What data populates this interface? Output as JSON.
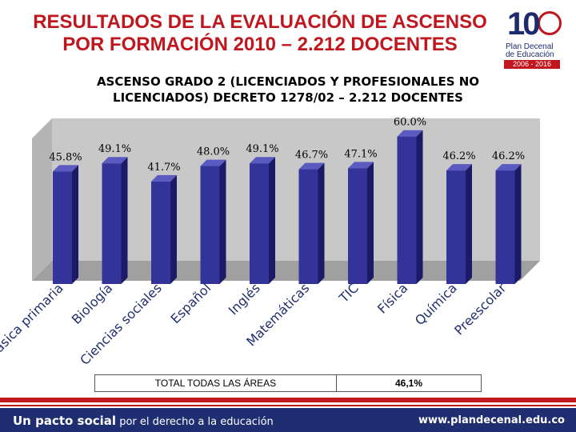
{
  "header": {
    "title_line1": "RESULTADOS DE LA EVALUACIÓN DE ASCENSO",
    "title_line2": "POR FORMACIÓN 2010 – 2.212 DOCENTES"
  },
  "logo": {
    "digits": "10",
    "line1": "Plan Decenal",
    "line2": "de Educación",
    "line3": "2006 - 2016"
  },
  "chart_data": {
    "type": "bar",
    "title_line1": "ASCENSO GRADO 2 (LICENCIADOS Y PROFESIONALES NO",
    "title_line2": "LICENCIADOS) DECRETO 1278/02 – 2.212 DOCENTES",
    "categories": [
      "Básica primaria",
      "Biología",
      "Ciencias sociales",
      "Español",
      "Inglés",
      "Matemáticas",
      "TIC",
      "Física",
      "Química",
      "Preescolar"
    ],
    "values": [
      45.8,
      49.1,
      41.7,
      48.0,
      49.1,
      46.7,
      47.1,
      60.0,
      46.2,
      46.2
    ],
    "value_labels": [
      "45.8%",
      "49.1%",
      "41.7%",
      "48.0%",
      "49.1%",
      "46.7%",
      "47.1%",
      "60.0%",
      "46.2%",
      "46.2%"
    ],
    "ylim": [
      0,
      70
    ],
    "xlabel": "",
    "ylabel": "",
    "colors": {
      "bar_front": "#33339a",
      "bar_side": "#1a1a66",
      "bar_top": "#5a5ac0",
      "wall": "#c8c8c8",
      "floor": "#a0a0a0"
    }
  },
  "summary": {
    "label": "TOTAL  TODAS LAS ÁREAS",
    "value": "46,1%"
  },
  "footer": {
    "bold_text": "Un pacto social",
    "small_text": " por el derecho a la educación",
    "website": "www.plandecenal.edu.co"
  }
}
